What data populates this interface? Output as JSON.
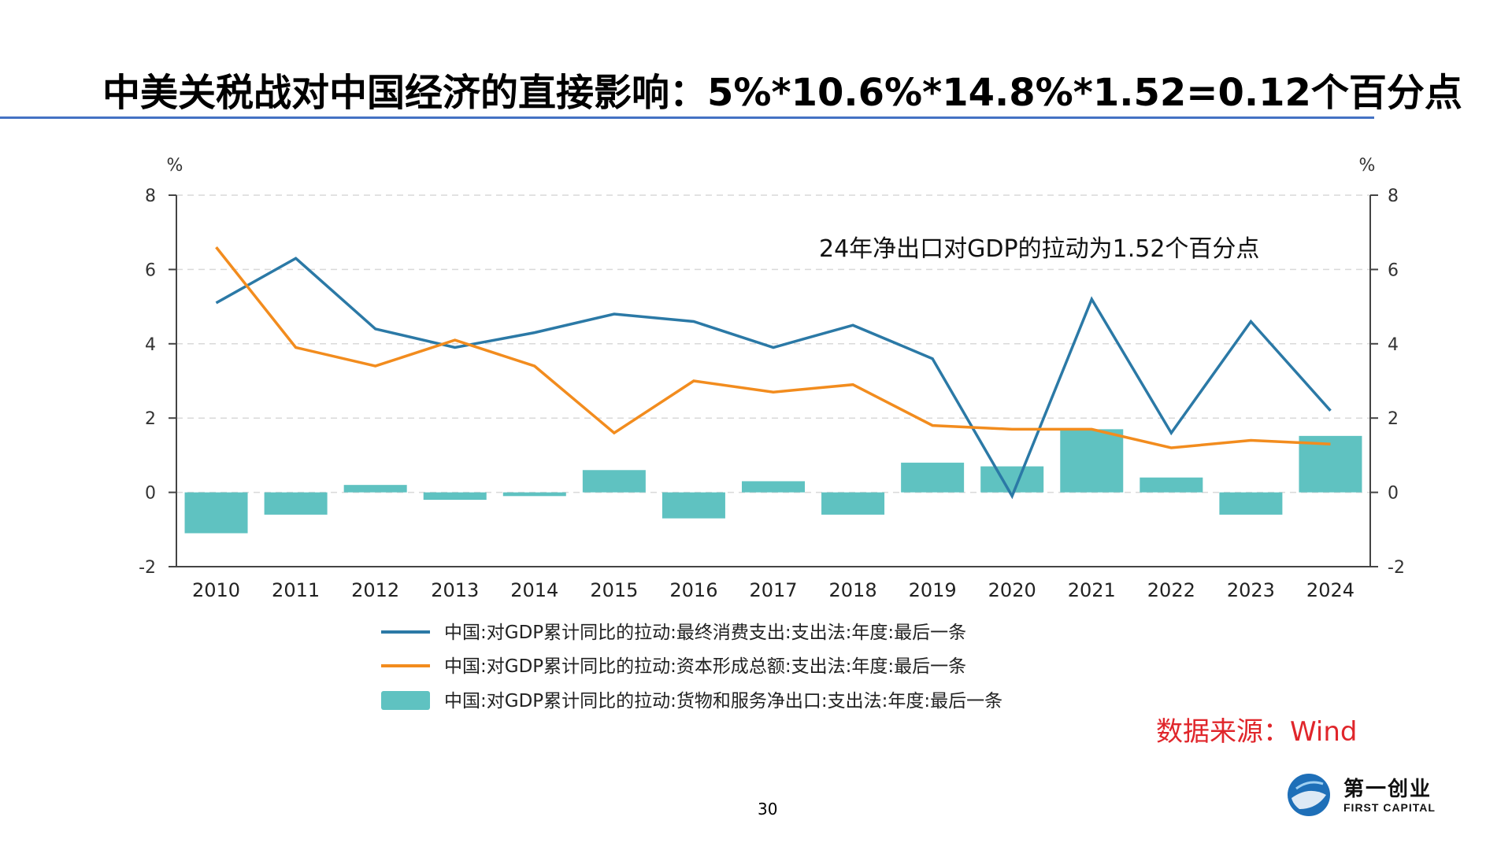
{
  "slide": {
    "title": "中美关税战对中国经济的直接影响：5%*10.6%*14.8%*1.52=0.12个百分点",
    "page_number": "30",
    "source": "数据来源：Wind",
    "logo": {
      "name_cn": "第一创业",
      "name_en": "FIRST CAPITAL",
      "icon": "globe-icon"
    }
  },
  "chart_data": {
    "type": "bar+line",
    "categories": [
      "2010",
      "2011",
      "2012",
      "2013",
      "2014",
      "2015",
      "2016",
      "2017",
      "2018",
      "2019",
      "2020",
      "2021",
      "2022",
      "2023",
      "2024"
    ],
    "y_unit_left": "%",
    "y_unit_right": "%",
    "ylim": [
      -2,
      8
    ],
    "yticks": [
      "8",
      "6",
      "4",
      "2",
      "0",
      "-2"
    ],
    "grid": true,
    "annotation": "24年净出口对GDP的拉动为1.52个百分点",
    "legend_position": "bottom",
    "series": [
      {
        "name": "中国:对GDP累计同比的拉动:最终消费支出:支出法:年度:最后一条",
        "type": "line",
        "color": "#2b79a6",
        "values": [
          5.1,
          6.3,
          4.4,
          3.9,
          4.3,
          4.8,
          4.6,
          3.9,
          4.5,
          3.6,
          -0.1,
          5.2,
          1.6,
          4.6,
          2.2
        ]
      },
      {
        "name": "中国:对GDP累计同比的拉动:资本形成总额:支出法:年度:最后一条",
        "type": "line",
        "color": "#f28c1e",
        "values": [
          6.6,
          3.9,
          3.4,
          4.1,
          3.4,
          1.6,
          3.0,
          2.7,
          2.9,
          1.8,
          1.7,
          1.7,
          1.2,
          1.4,
          1.3
        ]
      },
      {
        "name": "中国:对GDP累计同比的拉动:货物和服务净出口:支出法:年度:最后一条",
        "type": "bar",
        "color": "#5fc2c1",
        "values": [
          -1.1,
          -0.6,
          0.2,
          -0.2,
          -0.1,
          0.6,
          -0.7,
          0.3,
          -0.6,
          0.8,
          0.7,
          1.7,
          0.4,
          -0.6,
          1.52
        ]
      }
    ]
  }
}
